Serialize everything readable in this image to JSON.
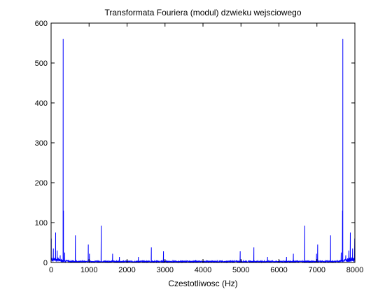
{
  "chart_data": {
    "type": "line",
    "title": "Transformata Fouriera (modul) dzwieku wejsciowego",
    "xlabel": "Czestotliwosc (Hz)",
    "ylabel": "",
    "xlim": [
      0,
      8000
    ],
    "ylim": [
      0,
      600
    ],
    "xticks": [
      0,
      1000,
      2000,
      3000,
      4000,
      5000,
      6000,
      7000,
      8000
    ],
    "yticks": [
      0,
      100,
      200,
      300,
      400,
      500,
      600
    ],
    "grid": false,
    "legend": "none",
    "series": [
      {
        "color": "#0000ff",
        "peaks": [
          {
            "x": 5,
            "y": 60
          },
          {
            "x": 60,
            "y": 35
          },
          {
            "x": 120,
            "y": 75
          },
          {
            "x": 160,
            "y": 30
          },
          {
            "x": 240,
            "y": 18
          },
          {
            "x": 318,
            "y": 560
          },
          {
            "x": 326,
            "y": 130
          },
          {
            "x": 360,
            "y": 25
          },
          {
            "x": 640,
            "y": 68
          },
          {
            "x": 980,
            "y": 45
          },
          {
            "x": 1010,
            "y": 22
          },
          {
            "x": 1320,
            "y": 92
          },
          {
            "x": 1620,
            "y": 22
          },
          {
            "x": 1800,
            "y": 14
          },
          {
            "x": 2300,
            "y": 14
          },
          {
            "x": 2640,
            "y": 38
          },
          {
            "x": 2960,
            "y": 28
          },
          {
            "x": 4980,
            "y": 28
          },
          {
            "x": 5340,
            "y": 38
          },
          {
            "x": 5700,
            "y": 14
          },
          {
            "x": 6200,
            "y": 14
          },
          {
            "x": 6380,
            "y": 22
          },
          {
            "x": 6680,
            "y": 92
          },
          {
            "x": 6990,
            "y": 22
          },
          {
            "x": 7020,
            "y": 45
          },
          {
            "x": 7360,
            "y": 68
          },
          {
            "x": 7640,
            "y": 25
          },
          {
            "x": 7674,
            "y": 130
          },
          {
            "x": 7682,
            "y": 560
          },
          {
            "x": 7760,
            "y": 18
          },
          {
            "x": 7840,
            "y": 30
          },
          {
            "x": 7880,
            "y": 75
          },
          {
            "x": 7940,
            "y": 35
          },
          {
            "x": 7995,
            "y": 60
          }
        ]
      }
    ]
  }
}
